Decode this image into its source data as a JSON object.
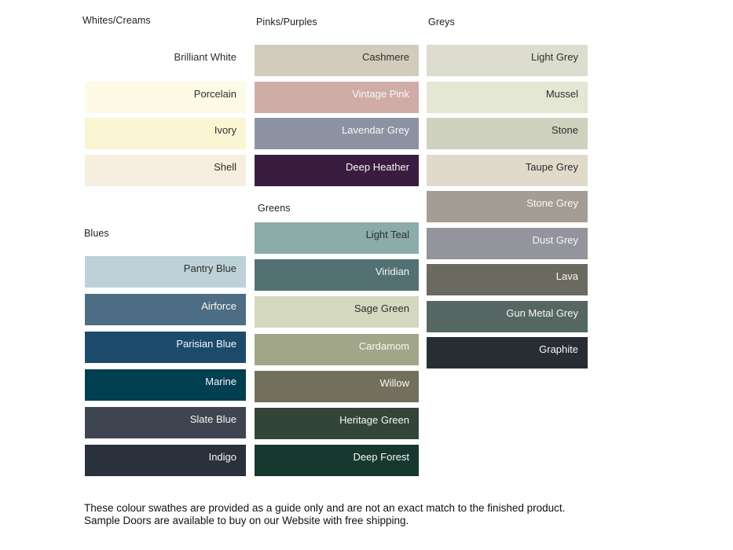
{
  "groups": [
    {
      "title": "Whites/Creams",
      "swatches": [
        {
          "name": "Brilliant White",
          "color": "#FFFFFF",
          "label_tone": "dark"
        },
        {
          "name": "Porcelain",
          "color": "#FDFAE6",
          "label_tone": "dark"
        },
        {
          "name": "Ivory",
          "color": "#FAF6D3",
          "label_tone": "dark"
        },
        {
          "name": "Shell",
          "color": "#F6EEDF",
          "label_tone": "dark"
        }
      ]
    },
    {
      "title": "Blues",
      "swatches": [
        {
          "name": "Pantry Blue",
          "color": "#BDD2D8",
          "label_tone": "dark"
        },
        {
          "name": "Airforce",
          "color": "#4D6D84",
          "label_tone": "light"
        },
        {
          "name": "Parisian Blue",
          "color": "#1C4A6B",
          "label_tone": "light"
        },
        {
          "name": "Marine",
          "color": "#003F50",
          "label_tone": "light"
        },
        {
          "name": "Slate Blue",
          "color": "#3E4450",
          "label_tone": "light"
        },
        {
          "name": "Indigo",
          "color": "#2A303C",
          "label_tone": "light"
        }
      ]
    },
    {
      "title": "Pinks/Purples",
      "swatches": [
        {
          "name": "Cashmere",
          "color": "#D2CCBC",
          "label_tone": "dark"
        },
        {
          "name": "Vintage Pink",
          "color": "#D0ACA7",
          "label_tone": "light"
        },
        {
          "name": "Lavendar Grey",
          "color": "#8D92A3",
          "label_tone": "light"
        },
        {
          "name": "Deep Heather",
          "color": "#3A1C40",
          "label_tone": "light"
        }
      ]
    },
    {
      "title": "Greens",
      "swatches": [
        {
          "name": "Light Teal",
          "color": "#8CACA9",
          "label_tone": "dark"
        },
        {
          "name": "Viridian",
          "color": "#537172",
          "label_tone": "light"
        },
        {
          "name": "Sage Green",
          "color": "#D3D8BE",
          "label_tone": "dark"
        },
        {
          "name": "Cardamom",
          "color": "#A1A689",
          "label_tone": "light"
        },
        {
          "name": "Willow",
          "color": "#72705C",
          "label_tone": "light"
        },
        {
          "name": "Heritage Green",
          "color": "#334539",
          "label_tone": "light"
        },
        {
          "name": "Deep Forest",
          "color": "#16382F",
          "label_tone": "light"
        }
      ]
    },
    {
      "title": "Greys",
      "swatches": [
        {
          "name": "Light Grey",
          "color": "#DCDDCE",
          "label_tone": "dark"
        },
        {
          "name": "Mussel",
          "color": "#E5E7D5",
          "label_tone": "dark"
        },
        {
          "name": "Stone",
          "color": "#CFD1BF",
          "label_tone": "dark"
        },
        {
          "name": "Taupe Grey",
          "color": "#E0DACB",
          "label_tone": "dark"
        },
        {
          "name": "Stone Grey",
          "color": "#A49D95",
          "label_tone": "light"
        },
        {
          "name": "Dust Grey",
          "color": "#94959C",
          "label_tone": "light"
        },
        {
          "name": "Lava",
          "color": "#6B6A60",
          "label_tone": "light"
        },
        {
          "name": "Gun Metal Grey",
          "color": "#566663",
          "label_tone": "light"
        },
        {
          "name": "Graphite",
          "color": "#272D33",
          "label_tone": "light"
        }
      ]
    }
  ],
  "footer": {
    "note": "These colour swathes are provided as a guide only and are not an exact match to the finished product.  Sample Doors are available to buy on our Website with free shipping."
  }
}
